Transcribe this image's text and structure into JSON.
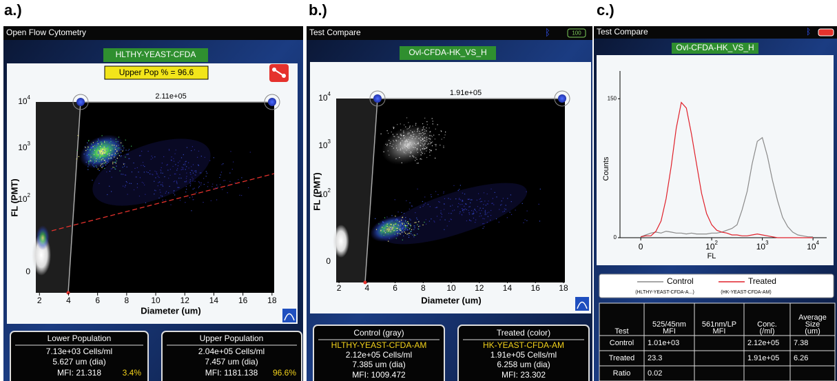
{
  "figure_labels": [
    "a.)",
    "b.)",
    "c.)"
  ],
  "panel_a": {
    "app_title": "Open Flow Cytometry",
    "sample": "HLTHY-YEAST-CFDA",
    "upper_pop": "Upper Pop % = 96.6",
    "gate_count": "2.11e+05",
    "y_label": "FL (PMT)",
    "x_label": "Diameter (um)",
    "y_ticks": [
      {
        "label": "10",
        "sup": "4"
      },
      {
        "label": "10",
        "sup": "3"
      },
      {
        "label": "10",
        "sup": "2"
      },
      {
        "label": "0"
      }
    ],
    "xlim": [
      1.75,
      18.15
    ],
    "x_ticks": [
      2,
      4,
      6,
      8,
      10,
      12,
      14,
      16,
      18
    ],
    "lower": {
      "title": "Lower Population",
      "conc": "7.13e+03 Cells/ml",
      "dia": "5.627 um (dia)",
      "mfi": "MFI: 21.318",
      "pct": "3.4%"
    },
    "upper": {
      "title": "Upper Population",
      "conc": "2.04e+05 Cells/ml",
      "dia": "7.457 um (dia)",
      "mfi": "MFI: 1181.138",
      "pct": "96.6%"
    }
  },
  "panel_b": {
    "app_title": "Test Compare",
    "battery": "100",
    "sample": "Ovl-CFDA-HK_VS_H",
    "gate_count": "1.91e+05",
    "y_label": "FL (PMT)",
    "x_label": "Diameter (um)",
    "y_ticks": [
      {
        "label": "10",
        "sup": "4"
      },
      {
        "label": "10",
        "sup": "3"
      },
      {
        "label": "10",
        "sup": "2"
      },
      {
        "label": "0"
      }
    ],
    "xlim": [
      1.8,
      18.1
    ],
    "x_ticks": [
      2,
      4,
      6,
      8,
      10,
      12,
      14,
      16,
      18
    ],
    "control": {
      "title": "Control (gray)",
      "sample": "HLTHY-YEAST-CFDA-AM",
      "conc": "2.12e+05 Cells/ml",
      "dia": "7.385 um (dia)",
      "mfi": "MFI: 1009.472"
    },
    "treated": {
      "title": "Treated (color)",
      "sample": "HK-YEAST-CFDA-AM",
      "conc": "1.91e+05 Cells/ml",
      "dia": "6.258 um (dia)",
      "mfi": "MFI: 23.302"
    }
  },
  "panel_c": {
    "app_title": "Test Compare",
    "sample": "Ovl-CFDA-HK_VS_H",
    "chart_data": {
      "type": "line",
      "x_label": "FL",
      "y_label": "Counts",
      "x": [
        0.6,
        0.7,
        0.8,
        0.9,
        1.0,
        1.1,
        1.2,
        1.3,
        1.4,
        1.5,
        1.6,
        1.7,
        1.8,
        1.9,
        2.0,
        2.1,
        2.2,
        2.3,
        2.4,
        2.5,
        2.6,
        2.7,
        2.8,
        2.9,
        3.0,
        3.1,
        3.2,
        3.3,
        3.4,
        3.5,
        3.6,
        3.7,
        3.8,
        3.9,
        4.0
      ],
      "series": [
        {
          "name": "Control",
          "sample": "(HLTHY-YEAST-CFDA-A...)",
          "color": "#8a8a8a",
          "values": [
            1,
            3,
            5,
            6,
            5,
            7,
            6,
            5,
            5,
            4,
            5,
            4,
            4,
            4,
            5,
            5,
            6,
            8,
            10,
            14,
            30,
            50,
            80,
            104,
            108,
            88,
            62,
            40,
            22,
            12,
            6,
            3,
            2,
            1,
            1
          ]
        },
        {
          "name": "Treated",
          "sample": "(HK-YEAST-CFDA-AM)",
          "color": "#e0202a",
          "values": [
            1,
            2,
            2,
            7,
            18,
            42,
            77,
            118,
            146,
            140,
            112,
            80,
            48,
            26,
            14,
            8,
            6,
            5,
            3,
            3,
            2,
            2,
            3,
            4,
            3,
            2,
            1,
            0,
            0,
            0,
            0,
            0,
            0,
            0,
            0
          ]
        }
      ],
      "xlim": [
        0.19,
        4.27
      ],
      "ylim": [
        0,
        180
      ],
      "yticks": [
        0,
        150
      ],
      "xticks": [
        {
          "value": 0.6,
          "label": "0"
        },
        {
          "value": 2,
          "label": "10",
          "sup": "2"
        },
        {
          "value": 3,
          "label": "10",
          "sup": "3"
        },
        {
          "value": 4,
          "label": "10",
          "sup": "4"
        }
      ]
    },
    "table": {
      "headers": [
        [
          "Test"
        ],
        [
          "525/45nm",
          "MFI"
        ],
        [
          "561nm/LP",
          "MFI"
        ],
        [
          "Conc.",
          "(/ml)"
        ],
        [
          "Average",
          "Size",
          "(um)"
        ]
      ],
      "rows": [
        {
          "label": "Control",
          "mfi_525": "1.01e+03",
          "conc": "2.12e+05",
          "size": "7.38"
        },
        {
          "label": "Treated",
          "mfi_525": "23.3",
          "conc": "1.91e+05",
          "size": "6.26"
        },
        {
          "label": "Ratio",
          "mfi_525": "0.02"
        }
      ]
    }
  }
}
